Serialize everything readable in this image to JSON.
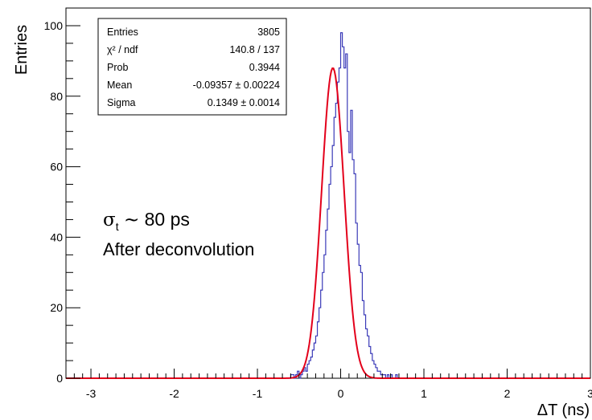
{
  "chart_data": {
    "type": "histogram",
    "xlabel": "ΔT (ns)",
    "ylabel": "Entries",
    "xlim": [
      -3.3,
      3.0
    ],
    "ylim": [
      0,
      105
    ],
    "x_ticks": [
      "-3",
      "-2",
      "-1",
      "0",
      "1",
      "2",
      "3"
    ],
    "y_ticks": [
      "0",
      "20",
      "40",
      "60",
      "80",
      "100"
    ],
    "histogram": {
      "color": "#3a3ab8",
      "bin_width": 0.02,
      "x_start": -0.6,
      "values": [
        1,
        1,
        0,
        1,
        2,
        0,
        1,
        2,
        3,
        2,
        4,
        5,
        6,
        8,
        10,
        12,
        16,
        20,
        25,
        30,
        35,
        42,
        48,
        55,
        60,
        66,
        74,
        78,
        84,
        88,
        98,
        94,
        88,
        92,
        70,
        64,
        76,
        62,
        58,
        44,
        38,
        32,
        30,
        22,
        18,
        14,
        12,
        9,
        7,
        5,
        4,
        3,
        2,
        2,
        1,
        1,
        1,
        0,
        1,
        0,
        1,
        0,
        0,
        1
      ]
    },
    "fit": {
      "type": "gaussian",
      "color": "#e3001b",
      "amplitude": 88,
      "mean": -0.09357,
      "sigma": 0.1349
    },
    "stats_box": [
      {
        "label": "Entries",
        "value": "3805"
      },
      {
        "label": "χ² / ndf",
        "value": "140.8 / 137"
      },
      {
        "label": "Prob",
        "value": "0.3944"
      },
      {
        "label": "Mean",
        "value": "-0.09357 ± 0.00224"
      },
      {
        "label": "Sigma",
        "value": "0.1349 ± 0.0014"
      }
    ],
    "annotation": {
      "line1_symbol": "σ",
      "line1_sub": "t",
      "line1_rest": " ∼ 80 ps",
      "line2": "After deconvolution"
    }
  }
}
